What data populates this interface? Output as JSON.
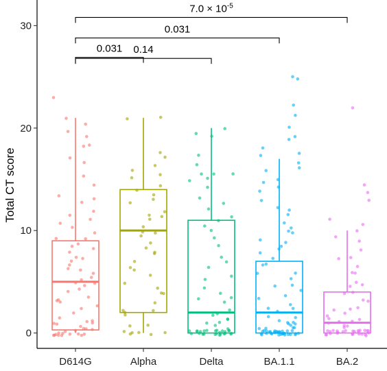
{
  "chart_data": {
    "type": "box",
    "ylabel": "Total CT score",
    "xlabel": "",
    "ylim": [
      -1.5,
      32.5
    ],
    "yticks": [
      0,
      10,
      20,
      30
    ],
    "categories": [
      "D614G",
      "Alpha",
      "Delta",
      "BA.1.1",
      "BA.2"
    ],
    "colors": {
      "D614G": "#F8766D",
      "Alpha": "#A3A500",
      "Delta": "#00BF7D",
      "BA.1.1": "#00B0F6",
      "BA.2": "#E76BF3"
    },
    "boxes": [
      {
        "group": "D614G",
        "min": 0,
        "q1": 0.3,
        "median": 5,
        "q3": 9,
        "max": 21
      },
      {
        "group": "Alpha",
        "min": 0,
        "q1": 2,
        "median": 10,
        "q3": 14,
        "max": 21
      },
      {
        "group": "Delta",
        "min": 0,
        "q1": 0,
        "median": 2,
        "q3": 11,
        "max": 20
      },
      {
        "group": "BA.1.1",
        "min": 0,
        "q1": 0,
        "median": 2,
        "q3": 7,
        "max": 17
      },
      {
        "group": "BA.2",
        "min": 0,
        "q1": 0,
        "median": 1,
        "q3": 4,
        "max": 10
      }
    ],
    "points": {
      "D614G": [
        23.2,
        20.8,
        20.4,
        19.8,
        19.2,
        18.3,
        18.2,
        17.2,
        16.4,
        15.3,
        14.6,
        13.4,
        13.2,
        12.8,
        12.1,
        11.4,
        11,
        10.6,
        10.2,
        9.8,
        9.4,
        9.1,
        8.7,
        8.3,
        8,
        7.8,
        7.5,
        7.2,
        6.9,
        6.6,
        6.3,
        6,
        5.8,
        5.5,
        5.2,
        5,
        4.8,
        4.5,
        4.2,
        4,
        3.7,
        3.4,
        3.1,
        2.8,
        2.5,
        2.2,
        2,
        1.7,
        1.4,
        1.2,
        1,
        0.8,
        0.6,
        0.5,
        0.4,
        0.3,
        0.2,
        0.1,
        0,
        0,
        0,
        0,
        0,
        0,
        0,
        0,
        0,
        0,
        0,
        0
      ],
      "Alpha": [
        21,
        20.8,
        17.8,
        17.4,
        16.3,
        16,
        15.4,
        15.1,
        14.4,
        14,
        13.4,
        13,
        12.6,
        12.1,
        11.7,
        11.2,
        10.9,
        10.4,
        10,
        9.7,
        9.3,
        8.8,
        8.3,
        7.8,
        7.5,
        7,
        6.5,
        6,
        5.6,
        5,
        4.6,
        4,
        3.6,
        3,
        2.4,
        2,
        1.8,
        1.5,
        1,
        0.5,
        0,
        0,
        0,
        0,
        0,
        0
      ],
      "Delta": [
        20.2,
        19.7,
        19,
        17.4,
        16.2,
        15.6,
        15.5,
        15.3,
        15,
        14.6,
        14,
        13.4,
        12.8,
        12.3,
        11.5,
        11,
        10.4,
        10,
        9.4,
        8.6,
        7.6,
        7.2,
        6.4,
        5.8,
        5,
        4.6,
        4,
        3.6,
        3.2,
        2.8,
        2.4,
        2,
        1.7,
        1.4,
        1.2,
        1,
        0.8,
        0.6,
        0.4,
        0.3,
        0.2,
        0.1,
        0,
        0,
        0,
        0,
        0,
        0,
        0,
        0,
        0,
        0,
        0,
        0,
        0,
        0,
        0,
        0,
        0,
        0,
        0,
        0,
        0,
        0
      ],
      "BA.1.1": [
        24.8,
        24.8,
        22.2,
        21.4,
        20.3,
        19,
        18.7,
        18.3,
        17.3,
        17.2,
        16.8,
        16,
        15.6,
        15,
        14.6,
        14.1,
        13.6,
        13,
        12.4,
        12,
        11.5,
        11,
        10.5,
        10,
        9.6,
        9.2,
        8.8,
        8.4,
        8,
        7.6,
        7.2,
        6.8,
        6.4,
        6,
        5.6,
        5.2,
        4.8,
        4.4,
        4,
        3.6,
        3.2,
        2.9,
        2.6,
        2.3,
        2,
        1.8,
        1.6,
        1.4,
        1.2,
        1,
        0.9,
        0.8,
        0.7,
        0.6,
        0.5,
        0.4,
        0.3,
        0.2,
        0.1,
        0,
        0,
        0,
        0,
        0,
        0,
        0,
        0,
        0,
        0,
        0,
        0,
        0,
        0,
        0,
        0,
        0,
        0,
        0,
        0,
        0,
        0,
        0,
        0,
        0,
        0,
        0,
        0,
        0,
        0,
        0
      ],
      "BA.2": [
        22.1,
        14.5,
        13.6,
        12.7,
        11,
        10.8,
        10,
        9.4,
        8.8,
        8.2,
        7.6,
        7,
        6.5,
        6,
        5.6,
        5.2,
        4.8,
        4.4,
        4,
        3.6,
        3.3,
        3,
        2.7,
        2.4,
        2.1,
        1.9,
        1.7,
        1.5,
        1.3,
        1.1,
        1,
        0.9,
        0.8,
        0.7,
        0.6,
        0.5,
        0.4,
        0.3,
        0.2,
        0.1,
        0,
        0,
        0,
        0,
        0,
        0,
        0,
        0,
        0,
        0,
        0,
        0,
        0,
        0,
        0,
        0,
        0,
        0,
        0,
        0,
        0
      ]
    },
    "comparisons": [
      {
        "from": "D614G",
        "to": "Alpha",
        "label": "0.031",
        "y": 26.9
      },
      {
        "from": "D614G",
        "to": "Delta",
        "label": "0.14",
        "y": 26.8
      },
      {
        "from": "D614G",
        "to": "BA.1.1",
        "label": "0.031",
        "y": 28.8
      },
      {
        "from": "D614G",
        "to": "BA.2",
        "label": "7.0 × 10",
        "sup": "-5",
        "y": 30.8
      }
    ]
  }
}
